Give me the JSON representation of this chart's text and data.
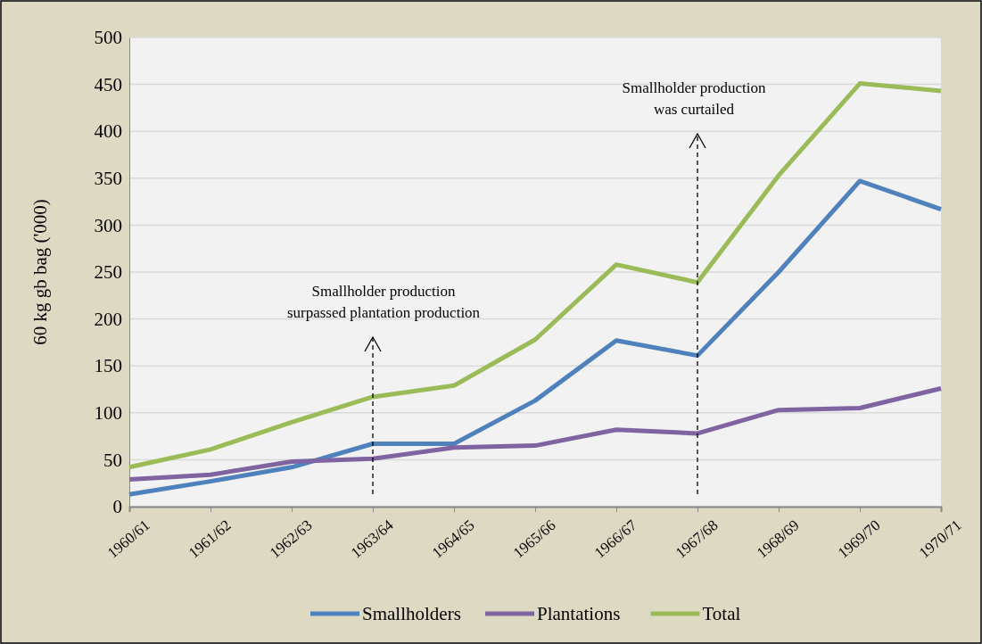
{
  "chart_data": {
    "type": "line",
    "ylabel": "60 kg gb bag ('000)",
    "categories": [
      "1960/61",
      "1961/62",
      "1962/63",
      "1963/64",
      "1964/65",
      "1965/66",
      "1966/67",
      "1967/68",
      "1968/69",
      "1969/70",
      "1970/71"
    ],
    "series": [
      {
        "name": "Smallholders",
        "color": "#4f81bd",
        "values": [
          13,
          27,
          42,
          67,
          67,
          113,
          177,
          161,
          250,
          347,
          317
        ]
      },
      {
        "name": "Plantations",
        "color": "#8064a2",
        "values": [
          29,
          34,
          48,
          51,
          63,
          65,
          82,
          78,
          103,
          105,
          126
        ]
      },
      {
        "name": "Total",
        "color": "#9bbb59",
        "values": [
          42,
          61,
          90,
          117,
          129,
          178,
          258,
          239,
          353,
          451,
          443
        ]
      }
    ],
    "ylim": [
      0,
      500
    ],
    "yticks": [
      0,
      50,
      100,
      150,
      200,
      250,
      300,
      350,
      400,
      450,
      500
    ],
    "grid": "y",
    "legend": "bottom",
    "marker": "none",
    "line_style": "solid",
    "annotations": [
      "Smallholder production surpassed plantation production",
      "Smallholder production was curtailed"
    ]
  }
}
